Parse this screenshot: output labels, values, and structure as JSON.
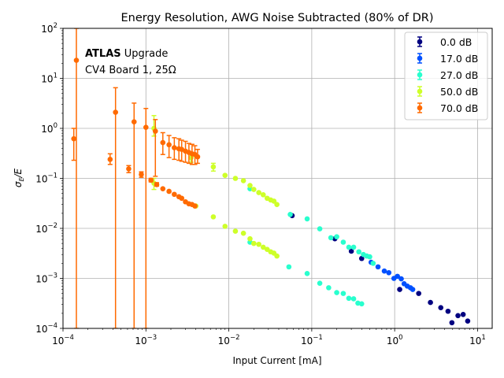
{
  "chart_data": {
    "type": "scatter",
    "title": "Energy Resolution, AWG Noise Subtracted (80% of DR)",
    "xlabel": "Input Current [mA]",
    "ylabel_main": "σ",
    "ylabel_sub": "E",
    "ylabel_tail": "/E",
    "xscale": "log",
    "yscale": "log",
    "xlim": [
      0.0001,
      15
    ],
    "ylim": [
      0.0001,
      100
    ],
    "grid": true,
    "legend_position": "top-right",
    "x_ticks": [
      {
        "value": 0.0001,
        "base": "10",
        "exp": "−4"
      },
      {
        "value": 0.001,
        "base": "10",
        "exp": "−3"
      },
      {
        "value": 0.01,
        "base": "10",
        "exp": "−2"
      },
      {
        "value": 0.1,
        "base": "10",
        "exp": "−1"
      },
      {
        "value": 1,
        "base": "10",
        "exp": "0"
      },
      {
        "value": 10,
        "base": "10",
        "exp": "1"
      }
    ],
    "y_ticks": [
      {
        "value": 100,
        "base": "10",
        "exp": "2"
      },
      {
        "value": 10,
        "base": "10",
        "exp": "1"
      },
      {
        "value": 1,
        "base": "10",
        "exp": "0"
      },
      {
        "value": 0.1,
        "base": "10",
        "exp": "−1"
      },
      {
        "value": 0.01,
        "base": "10",
        "exp": "−2"
      },
      {
        "value": 0.001,
        "base": "10",
        "exp": "−3"
      },
      {
        "value": 0.0001,
        "base": "10",
        "exp": "−4"
      }
    ],
    "annotations": [
      {
        "bold": "ATLAS",
        "text": " Upgrade"
      },
      {
        "bold": "",
        "text": "CV4 Board 1, 25Ω"
      }
    ],
    "series": [
      {
        "name": "0.0 dB",
        "color": "#000080",
        "points": [
          [
            0.058,
            0.018
          ],
          [
            0.19,
            0.0062
          ],
          [
            0.3,
            0.0035
          ],
          [
            0.4,
            0.0025
          ],
          [
            1.15,
            0.0006
          ],
          [
            1.95,
            0.0005
          ],
          [
            2.7,
            0.00033
          ],
          [
            3.6,
            0.00026
          ],
          [
            4.4,
            0.00022
          ],
          [
            4.9,
            0.00013
          ],
          [
            5.8,
            0.00018
          ],
          [
            6.7,
            0.00019
          ],
          [
            7.6,
            0.00014
          ]
        ]
      },
      {
        "name": "17.0 dB",
        "color": "#0050ff",
        "points": [
          [
            0.52,
            0.0021
          ],
          [
            0.63,
            0.0017
          ],
          [
            0.75,
            0.0014
          ],
          [
            0.85,
            0.0013
          ],
          [
            0.98,
            0.001
          ],
          [
            1.08,
            0.0011
          ],
          [
            1.2,
            0.00098
          ],
          [
            1.3,
            0.00078
          ],
          [
            1.42,
            0.0007
          ],
          [
            1.55,
            0.00065
          ],
          [
            1.65,
            0.0006
          ]
        ]
      },
      {
        "name": "27.0 dB",
        "color": "#29ffce",
        "points": [
          [
            0.018,
            0.062
          ],
          [
            0.055,
            0.019
          ],
          [
            0.088,
            0.0155
          ],
          [
            0.125,
            0.0098
          ],
          [
            0.17,
            0.0065
          ],
          [
            0.2,
            0.0068
          ],
          [
            0.24,
            0.0053
          ],
          [
            0.28,
            0.0042
          ],
          [
            0.32,
            0.0042
          ],
          [
            0.37,
            0.0034
          ],
          [
            0.42,
            0.003
          ],
          [
            0.46,
            0.0028
          ],
          [
            0.5,
            0.0027
          ],
          [
            0.55,
            0.002
          ],
          [
            0.018,
            0.0053
          ],
          [
            0.053,
            0.0017
          ],
          [
            0.088,
            0.00125
          ],
          [
            0.125,
            0.0008
          ],
          [
            0.16,
            0.00065
          ],
          [
            0.2,
            0.00052
          ],
          [
            0.24,
            0.0005
          ],
          [
            0.28,
            0.0004
          ],
          [
            0.32,
            0.00039
          ],
          [
            0.36,
            0.00032
          ],
          [
            0.4,
            0.00031
          ]
        ]
      },
      {
        "name": "50.0 dB",
        "color": "#ceff29",
        "points": [
          [
            0.00125,
            1.0,
            0.7,
            1.8
          ],
          [
            0.0035,
            0.26,
            0.21,
            0.31
          ],
          [
            0.0065,
            0.17,
            0.14,
            0.2
          ],
          [
            0.009,
            0.115
          ],
          [
            0.012,
            0.1
          ],
          [
            0.015,
            0.09
          ],
          [
            0.018,
            0.072
          ],
          [
            0.02,
            0.06
          ],
          [
            0.023,
            0.052
          ],
          [
            0.026,
            0.047
          ],
          [
            0.029,
            0.04
          ],
          [
            0.032,
            0.037
          ],
          [
            0.035,
            0.035
          ],
          [
            0.038,
            0.03
          ],
          [
            0.00125,
            0.08,
            0.06,
            0.1
          ],
          [
            0.004,
            0.028
          ],
          [
            0.0065,
            0.017
          ],
          [
            0.009,
            0.011
          ],
          [
            0.012,
            0.0088
          ],
          [
            0.015,
            0.008
          ],
          [
            0.018,
            0.0062
          ],
          [
            0.02,
            0.005
          ],
          [
            0.023,
            0.0048
          ],
          [
            0.026,
            0.0042
          ],
          [
            0.029,
            0.0038
          ],
          [
            0.032,
            0.0034
          ],
          [
            0.035,
            0.0032
          ],
          [
            0.038,
            0.0028
          ]
        ]
      },
      {
        "name": "70.0 dB",
        "color": "#ff6a00",
        "points": [
          [
            0.000135,
            0.62,
            0.23,
            1.0
          ],
          [
            0.000145,
            23,
            0.0001,
            100
          ],
          [
            0.00037,
            0.24,
            0.19,
            0.31
          ],
          [
            0.00043,
            2.1,
            0.0001,
            6.5
          ],
          [
            0.00062,
            0.155,
            0.13,
            0.18
          ],
          [
            0.00072,
            1.35,
            0.0001,
            3.2
          ],
          [
            0.00088,
            0.12,
            0.105,
            0.135
          ],
          [
            0.001,
            1.05,
            0.0001,
            2.5
          ],
          [
            0.00115,
            0.092,
            0.085,
            0.1
          ],
          [
            0.0013,
            0.88,
            0.11,
            1.5
          ],
          [
            0.00135,
            0.075,
            0.07,
            0.082
          ],
          [
            0.0016,
            0.52,
            0.3,
            0.82
          ],
          [
            0.0019,
            0.47,
            0.26,
            0.72
          ],
          [
            0.0022,
            0.41,
            0.24,
            0.65
          ],
          [
            0.0025,
            0.39,
            0.23,
            0.62
          ],
          [
            0.0027,
            0.38,
            0.22,
            0.58
          ],
          [
            0.003,
            0.35,
            0.21,
            0.55
          ],
          [
            0.0033,
            0.33,
            0.2,
            0.5
          ],
          [
            0.0036,
            0.31,
            0.19,
            0.48
          ],
          [
            0.0039,
            0.3,
            0.19,
            0.45
          ],
          [
            0.0042,
            0.27,
            0.2,
            0.38
          ],
          [
            0.0016,
            0.062
          ],
          [
            0.0019,
            0.055
          ],
          [
            0.0022,
            0.048
          ],
          [
            0.0025,
            0.043
          ],
          [
            0.0027,
            0.04
          ],
          [
            0.003,
            0.034
          ],
          [
            0.0033,
            0.031
          ],
          [
            0.0036,
            0.03
          ],
          [
            0.0039,
            0.028
          ]
        ]
      }
    ]
  }
}
